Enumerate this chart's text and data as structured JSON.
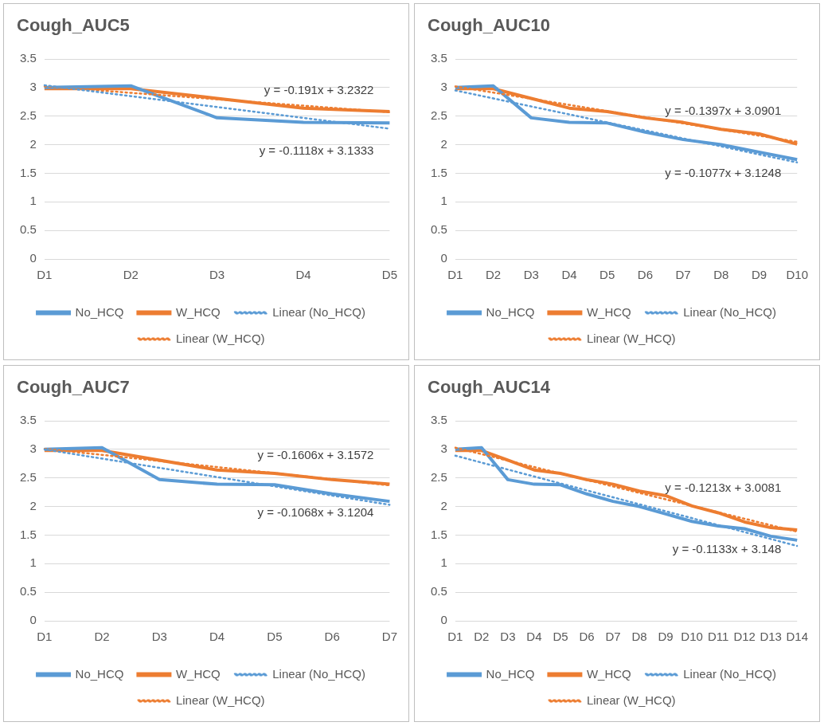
{
  "chart_data": [
    {
      "type": "line",
      "title": "Cough_AUC5",
      "categories": [
        "D1",
        "D2",
        "D3",
        "D4",
        "D5"
      ],
      "ylim": [
        0,
        3.5
      ],
      "yticks": [
        0,
        0.5,
        1,
        1.5,
        2,
        2.5,
        3,
        3.5
      ],
      "grid": "y",
      "legend": "bottom",
      "annotations": [
        "y = -0.191x + 3.2322",
        "y = -0.1118x + 3.1333"
      ],
      "series": [
        {
          "name": "No_HCQ",
          "color": "#5b9bd5",
          "values": [
            3.0,
            3.03,
            2.47,
            2.39,
            2.38
          ]
        },
        {
          "name": "W_HCQ",
          "color": "#ed7d31",
          "values": [
            2.98,
            2.98,
            2.81,
            2.64,
            2.58
          ]
        },
        {
          "name": "Linear (No_HCQ)",
          "type": "line",
          "line_style": "dotted",
          "color": "#5b9bd5",
          "x": [
            "D1",
            "D5"
          ],
          "values": [
            3.04,
            2.28
          ]
        },
        {
          "name": "Linear (W_HCQ)",
          "type": "line",
          "line_style": "dotted",
          "color": "#ed7d31",
          "x": [
            "D1",
            "D5"
          ],
          "values": [
            3.02,
            2.57
          ]
        }
      ]
    },
    {
      "type": "line",
      "title": "Cough_AUC10",
      "categories": [
        "D1",
        "D2",
        "D3",
        "D4",
        "D5",
        "D6",
        "D7",
        "D8",
        "D9",
        "D10"
      ],
      "ylim": [
        0,
        3.5
      ],
      "yticks": [
        0,
        0.5,
        1,
        1.5,
        2,
        2.5,
        3,
        3.5
      ],
      "grid": "y",
      "legend": "bottom",
      "annotations": [
        "y = -0.1397x + 3.0901",
        "y = -0.1077x + 3.1248"
      ],
      "series": [
        {
          "name": "No_HCQ",
          "color": "#5b9bd5",
          "values": [
            3.0,
            3.03,
            2.47,
            2.39,
            2.38,
            2.22,
            2.09,
            2.0,
            1.87,
            1.74
          ]
        },
        {
          "name": "W_HCQ",
          "color": "#ed7d31",
          "values": [
            2.98,
            2.98,
            2.81,
            2.64,
            2.58,
            2.47,
            2.39,
            2.27,
            2.19,
            2.01
          ]
        },
        {
          "name": "Linear (No_HCQ)",
          "type": "line",
          "line_style": "dotted",
          "color": "#5b9bd5",
          "x": [
            "D1",
            "D10"
          ],
          "values": [
            2.95,
            1.69
          ]
        },
        {
          "name": "Linear (W_HCQ)",
          "type": "line",
          "line_style": "dotted",
          "color": "#ed7d31",
          "x": [
            "D1",
            "D10"
          ],
          "values": [
            3.02,
            2.05
          ]
        }
      ]
    },
    {
      "type": "line",
      "title": "Cough_AUC7",
      "categories": [
        "D1",
        "D2",
        "D3",
        "D4",
        "D5",
        "D6",
        "D7"
      ],
      "ylim": [
        0,
        3.5
      ],
      "yticks": [
        0,
        0.5,
        1,
        1.5,
        2,
        2.5,
        3,
        3.5
      ],
      "grid": "y",
      "legend": "bottom",
      "annotations": [
        "y = -0.1606x + 3.1572",
        "y = -0.1068x + 3.1204"
      ],
      "series": [
        {
          "name": "No_HCQ",
          "color": "#5b9bd5",
          "values": [
            3.0,
            3.03,
            2.47,
            2.39,
            2.38,
            2.22,
            2.09
          ]
        },
        {
          "name": "W_HCQ",
          "color": "#ed7d31",
          "values": [
            2.98,
            2.98,
            2.81,
            2.64,
            2.58,
            2.47,
            2.39
          ]
        },
        {
          "name": "Linear (No_HCQ)",
          "type": "line",
          "line_style": "dotted",
          "color": "#5b9bd5",
          "x": [
            "D1",
            "D7"
          ],
          "values": [
            3.0,
            2.03
          ]
        },
        {
          "name": "Linear (W_HCQ)",
          "type": "line",
          "line_style": "dotted",
          "color": "#ed7d31",
          "x": [
            "D1",
            "D7"
          ],
          "values": [
            3.01,
            2.37
          ]
        }
      ]
    },
    {
      "type": "line",
      "title": "Cough_AUC14",
      "categories": [
        "D1",
        "D2",
        "D3",
        "D4",
        "D5",
        "D6",
        "D7",
        "D8",
        "D9",
        "D10",
        "D11",
        "D12",
        "D13",
        "D14"
      ],
      "ylim": [
        0,
        3.5
      ],
      "yticks": [
        0,
        0.5,
        1,
        1.5,
        2,
        2.5,
        3,
        3.5
      ],
      "grid": "y",
      "legend": "bottom",
      "annotations": [
        "y = -0.1213x + 3.0081",
        "y = -0.1133x + 3.148"
      ],
      "series": [
        {
          "name": "No_HCQ",
          "color": "#5b9bd5",
          "values": [
            3.0,
            3.03,
            2.47,
            2.39,
            2.38,
            2.22,
            2.09,
            2.0,
            1.87,
            1.74,
            1.66,
            1.61,
            1.48,
            1.41
          ]
        },
        {
          "name": "W_HCQ",
          "color": "#ed7d31",
          "values": [
            2.98,
            2.98,
            2.81,
            2.64,
            2.58,
            2.47,
            2.39,
            2.27,
            2.19,
            2.01,
            1.89,
            1.73,
            1.63,
            1.59
          ]
        },
        {
          "name": "Linear (No_HCQ)",
          "type": "line",
          "line_style": "dotted",
          "color": "#5b9bd5",
          "x": [
            "D1",
            "D14"
          ],
          "values": [
            2.89,
            1.31
          ]
        },
        {
          "name": "Linear (W_HCQ)",
          "type": "line",
          "line_style": "dotted",
          "color": "#ed7d31",
          "x": [
            "D1",
            "D14"
          ],
          "values": [
            3.03,
            1.56
          ]
        }
      ]
    }
  ]
}
